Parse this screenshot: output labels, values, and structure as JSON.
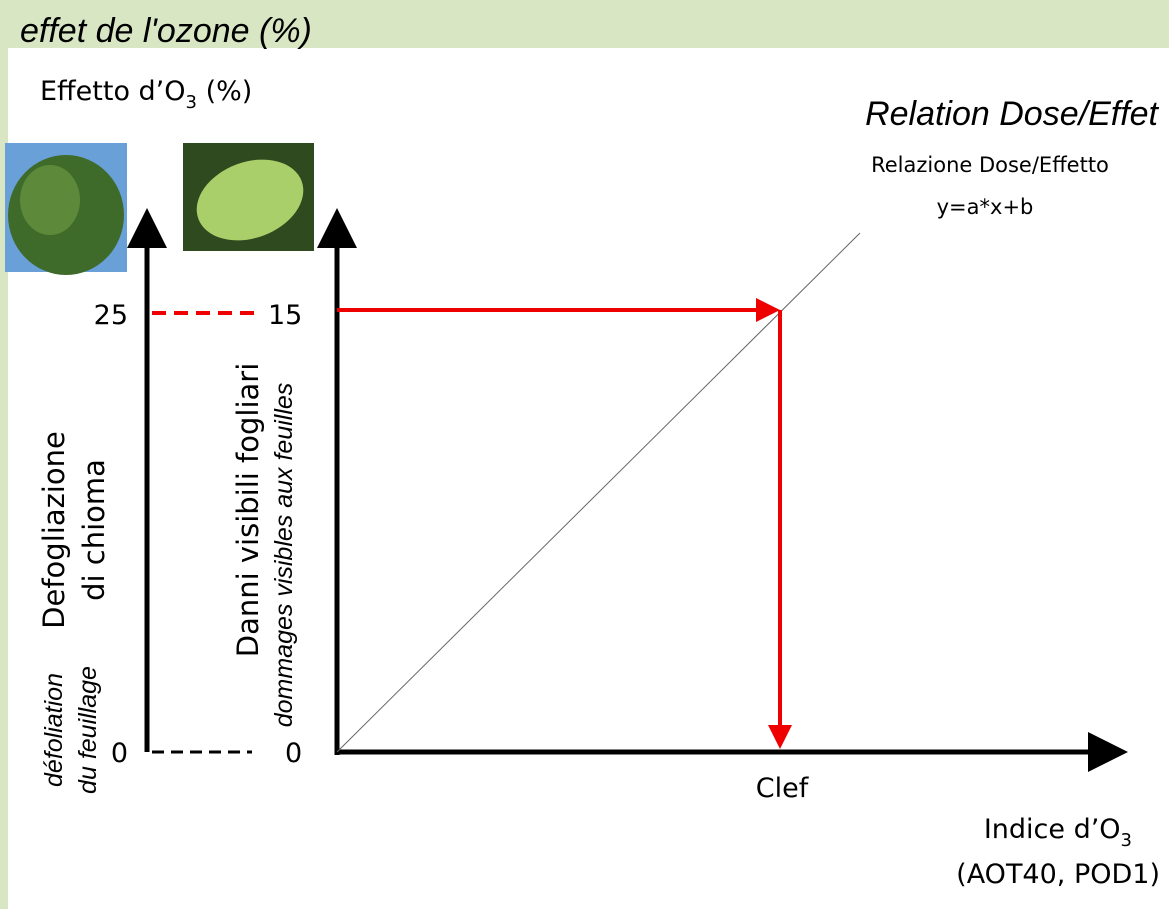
{
  "header": {
    "title": "effet de l'ozone (%)"
  },
  "y_label": {
    "text": "Effetto d’O",
    "sub": "3",
    "suffix": " (%)"
  },
  "relation": {
    "title": "Relation Dose/Effet",
    "subtitle": "Relazione Dose/Effetto",
    "formula": "y=a*x+b"
  },
  "left_axis": {
    "lines": [
      "Defogliazione",
      "di chioma"
    ],
    "french": [
      "défoliation",
      "du feuillage"
    ],
    "top_tick": "25",
    "bottom_tick": "0"
  },
  "middle_axis": {
    "label": "Danni visibili fogliari",
    "french": "dommages visibles aux feuilles",
    "top_tick": "15",
    "bottom_tick": "0"
  },
  "x_axis": {
    "marker": "Clef",
    "label": {
      "text": "Indice d’O",
      "sub": "3"
    },
    "detail": "(AOT40, POD1)"
  }
}
